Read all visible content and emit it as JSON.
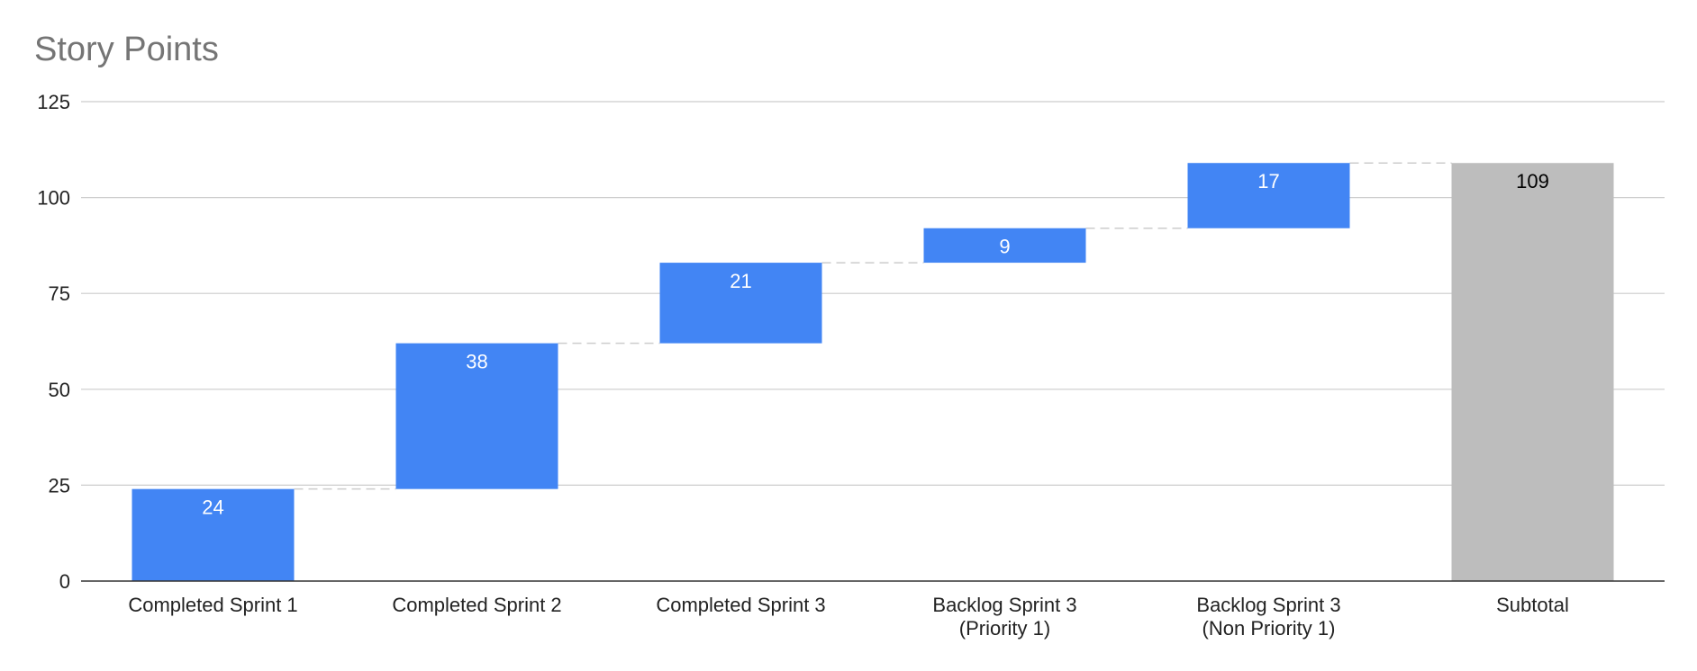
{
  "chart_data": {
    "type": "waterfall",
    "title": "Story Points",
    "xlabel": "",
    "ylabel": "",
    "ylim": [
      0,
      125
    ],
    "yticks": [
      0,
      25,
      50,
      75,
      100,
      125
    ],
    "grid": true,
    "legend": "none",
    "categories": [
      [
        "Completed Sprint 1"
      ],
      [
        "Completed Sprint 2"
      ],
      [
        "Completed Sprint 3"
      ],
      [
        "Backlog Sprint 3",
        "(Priority 1)"
      ],
      [
        "Backlog Sprint 3",
        "(Non Priority 1)"
      ],
      [
        "Subtotal"
      ]
    ],
    "values": [
      24,
      38,
      21,
      9,
      17,
      109
    ],
    "bar_kinds": [
      "increase",
      "increase",
      "increase",
      "increase",
      "increase",
      "total"
    ],
    "data_labels": [
      "24",
      "38",
      "21",
      "9",
      "17",
      "109"
    ],
    "colors": {
      "increase": "#4285f4",
      "total": "#bdbdbd",
      "title": "#757575",
      "grid": "#cccccc",
      "axis": "#333333",
      "connector": "#cccccc",
      "label_on_increase": "#ffffff",
      "label_on_total": "#000000",
      "tick_text": "#222222"
    }
  }
}
